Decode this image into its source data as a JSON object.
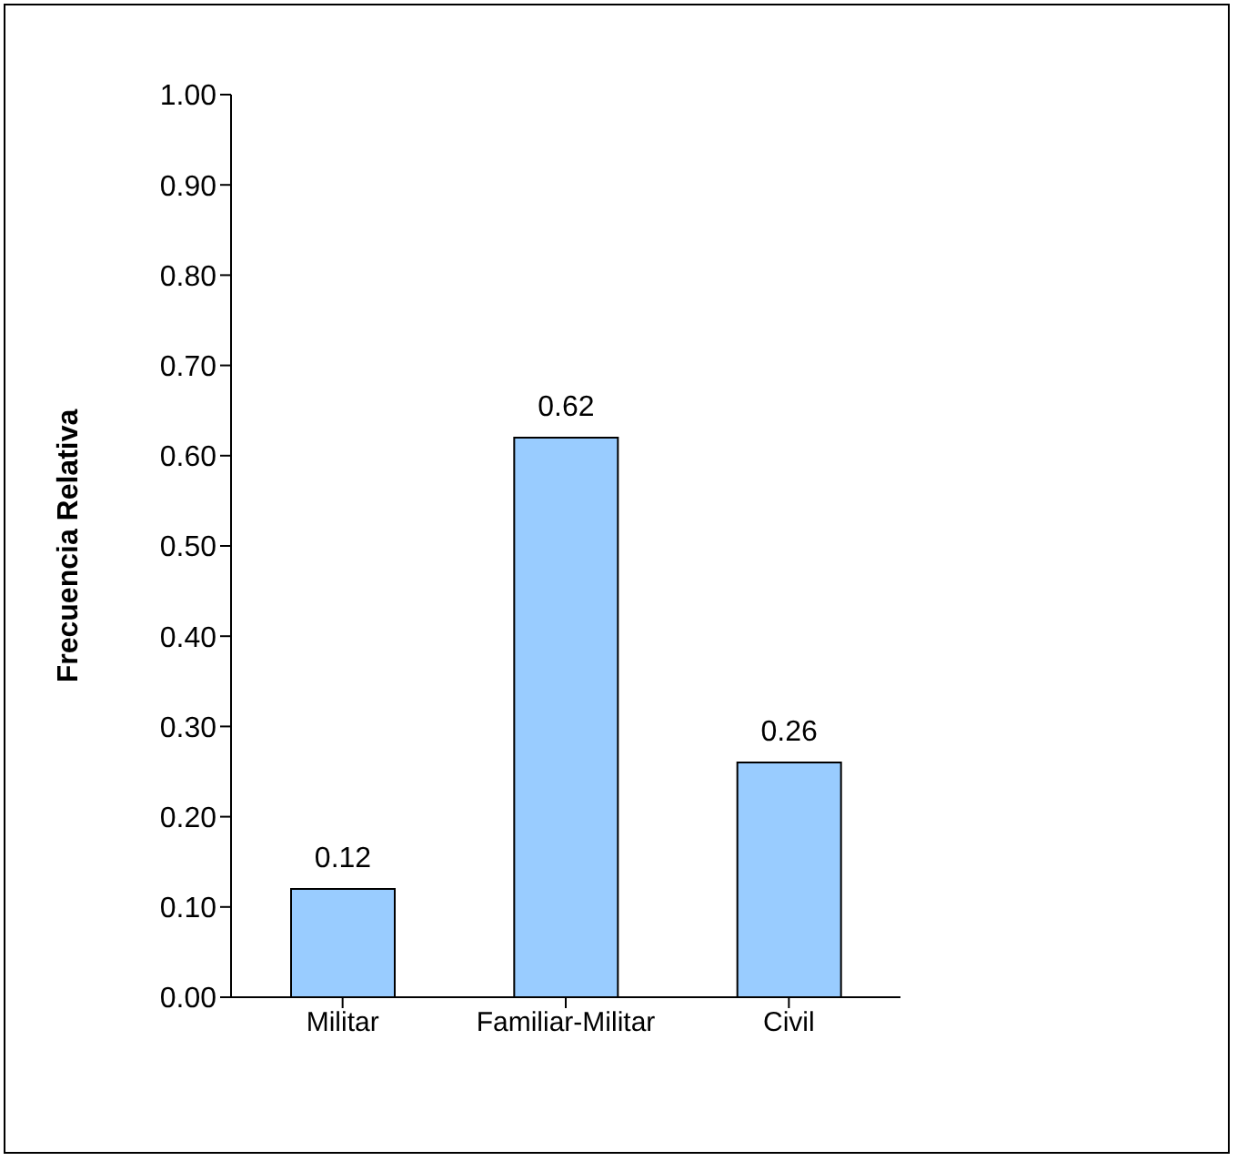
{
  "chart_data": {
    "type": "bar",
    "ylabel": "Frecuencia Relativa",
    "categories": [
      "Militar",
      "Familiar-Militar",
      "Civil"
    ],
    "values": [
      0.12,
      0.62,
      0.26
    ],
    "color": "#99ccff",
    "ylim": [
      0,
      1
    ],
    "yticks": [
      {
        "value": 0,
        "label": "0.00"
      },
      {
        "value": 0.1,
        "label": "0.10"
      },
      {
        "value": 0.2,
        "label": "0.20"
      },
      {
        "value": 0.3,
        "label": "0.30"
      },
      {
        "value": 0.4,
        "label": "0.40"
      },
      {
        "value": 0.5,
        "label": "0.50"
      },
      {
        "value": 0.6,
        "label": "0.60"
      },
      {
        "value": 0.7,
        "label": "0.70"
      },
      {
        "value": 0.8,
        "label": "0.80"
      },
      {
        "value": 0.9,
        "label": "0.90"
      },
      {
        "value": 1,
        "label": "1.00"
      }
    ],
    "data_labels": true,
    "grid": false,
    "legend": false
  }
}
